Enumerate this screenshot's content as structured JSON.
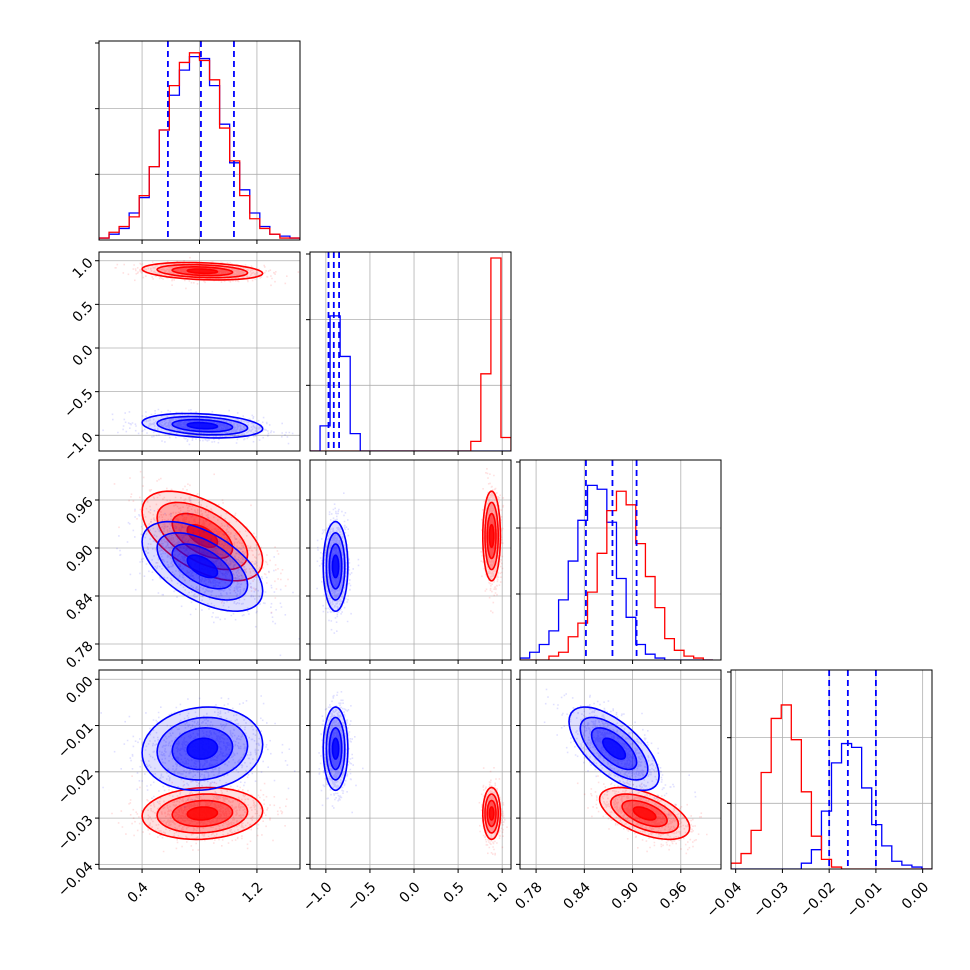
{
  "colors": {
    "blue": "#0000ff",
    "red": "#ff0000",
    "grid": "#b0b0b0"
  },
  "chart_data": {
    "type": "corner",
    "grid": true,
    "series": [
      {
        "color": "#0000ff"
      },
      {
        "color": "#ff0000"
      }
    ],
    "params": [
      {
        "range": [
          0.1,
          1.5
        ],
        "ticks": [
          0.4,
          0.8,
          1.2
        ],
        "tick_labels": [
          "0.4",
          "0.8",
          "1.2"
        ],
        "quantiles_blue": [
          0.58,
          0.81,
          1.04
        ],
        "hist_blue": [
          0.01,
          0.03,
          0.06,
          0.14,
          0.22,
          0.38,
          0.57,
          0.75,
          0.88,
          0.95,
          0.94,
          0.8,
          0.6,
          0.4,
          0.26,
          0.14,
          0.07,
          0.03,
          0.02,
          0.01
        ],
        "hist_red": [
          0.01,
          0.04,
          0.07,
          0.12,
          0.23,
          0.38,
          0.57,
          0.8,
          0.92,
          0.97,
          0.93,
          0.83,
          0.58,
          0.41,
          0.23,
          0.11,
          0.06,
          0.03,
          0.01,
          0.01
        ]
      },
      {
        "range": [
          -1.18,
          1.1
        ],
        "ticks": [
          -1.0,
          -0.5,
          0.0,
          0.5,
          1.0
        ],
        "tick_labels": [
          "−1.0",
          "−0.5",
          "0.0",
          "0.5",
          "1.0"
        ],
        "quantiles_blue": [
          -0.97,
          -0.91,
          -0.85
        ],
        "hist_blue": [
          0,
          0.13,
          0.7,
          0.49,
          0.09,
          0,
          0,
          0,
          0,
          0,
          0,
          0,
          0,
          0,
          0,
          0,
          0,
          0,
          0,
          0
        ],
        "hist_red": [
          0,
          0,
          0,
          0,
          0,
          0,
          0,
          0,
          0,
          0,
          0,
          0,
          0,
          0,
          0,
          0,
          0.05,
          0.4,
          1.0,
          0.07
        ]
      },
      {
        "range": [
          0.76,
          1.01
        ],
        "ticks": [
          0.78,
          0.84,
          0.9,
          0.96
        ],
        "tick_labels": [
          "0.78",
          "0.84",
          "0.90",
          "0.96"
        ],
        "quantiles_blue": [
          0.842,
          0.875,
          0.905
        ],
        "hist_blue": [
          0.01,
          0.04,
          0.08,
          0.15,
          0.31,
          0.51,
          0.72,
          0.9,
          0.88,
          0.71,
          0.42,
          0.22,
          0.08,
          0.03,
          0.01,
          0,
          0,
          0,
          0,
          0
        ],
        "hist_red": [
          0,
          0,
          0,
          0.02,
          0.04,
          0.12,
          0.19,
          0.35,
          0.55,
          0.77,
          0.87,
          0.8,
          0.6,
          0.43,
          0.27,
          0.11,
          0.05,
          0.02,
          0.01,
          0
        ],
        "hist_range": [
          0.76,
          1.0
        ]
      },
      {
        "range": [
          -0.041,
          0.002
        ],
        "ticks": [
          -0.04,
          -0.03,
          -0.02,
          -0.01,
          0.0
        ],
        "tick_labels": [
          "−0.04",
          "−0.03",
          "−0.02",
          "−0.01",
          "0.00"
        ],
        "quantiles_blue": [
          -0.02,
          -0.016,
          -0.01
        ],
        "hist_blue": [
          0,
          0,
          0,
          0,
          0,
          0,
          0,
          0.03,
          0.1,
          0.3,
          0.55,
          0.65,
          0.63,
          0.42,
          0.23,
          0.12,
          0.04,
          0.02,
          0.01,
          0
        ],
        "hist_red": [
          0.03,
          0.08,
          0.2,
          0.5,
          0.78,
          0.85,
          0.67,
          0.4,
          0.17,
          0.05,
          0.01,
          0,
          0,
          0,
          0,
          0,
          0,
          0,
          0,
          0
        ]
      }
    ],
    "y_axis_labels": {
      "row1": [
        "−1.0",
        "−0.5",
        "0.0",
        "0.5",
        "1.0"
      ],
      "row2": [
        "0.78",
        "0.84",
        "0.90",
        "0.96"
      ],
      "row3": [
        "−0.04",
        "−0.03",
        "−0.02",
        "−0.01",
        "0.00"
      ]
    },
    "clusters": {
      "blue": {
        "mean": [
          0.82,
          -0.89,
          0.877,
          -0.015
        ],
        "sd": [
          0.21,
          0.07,
          0.028,
          0.0045
        ]
      },
      "red": {
        "mean": [
          0.82,
          0.88,
          0.915,
          -0.029
        ],
        "sd": [
          0.21,
          0.05,
          0.028,
          0.0028
        ]
      }
    },
    "correlations": {
      "0-1": {
        "blue": -0.25,
        "red": -0.25
      },
      "0-2": {
        "blue": -0.55,
        "red": -0.55
      },
      "0-3": {
        "blue": 0.1,
        "red": 0.1
      },
      "1-2": {
        "blue": 0.0,
        "red": 0.0
      },
      "1-3": {
        "blue": 0.0,
        "red": 0.0
      },
      "2-3": {
        "blue": -0.65,
        "red": -0.55
      }
    }
  }
}
